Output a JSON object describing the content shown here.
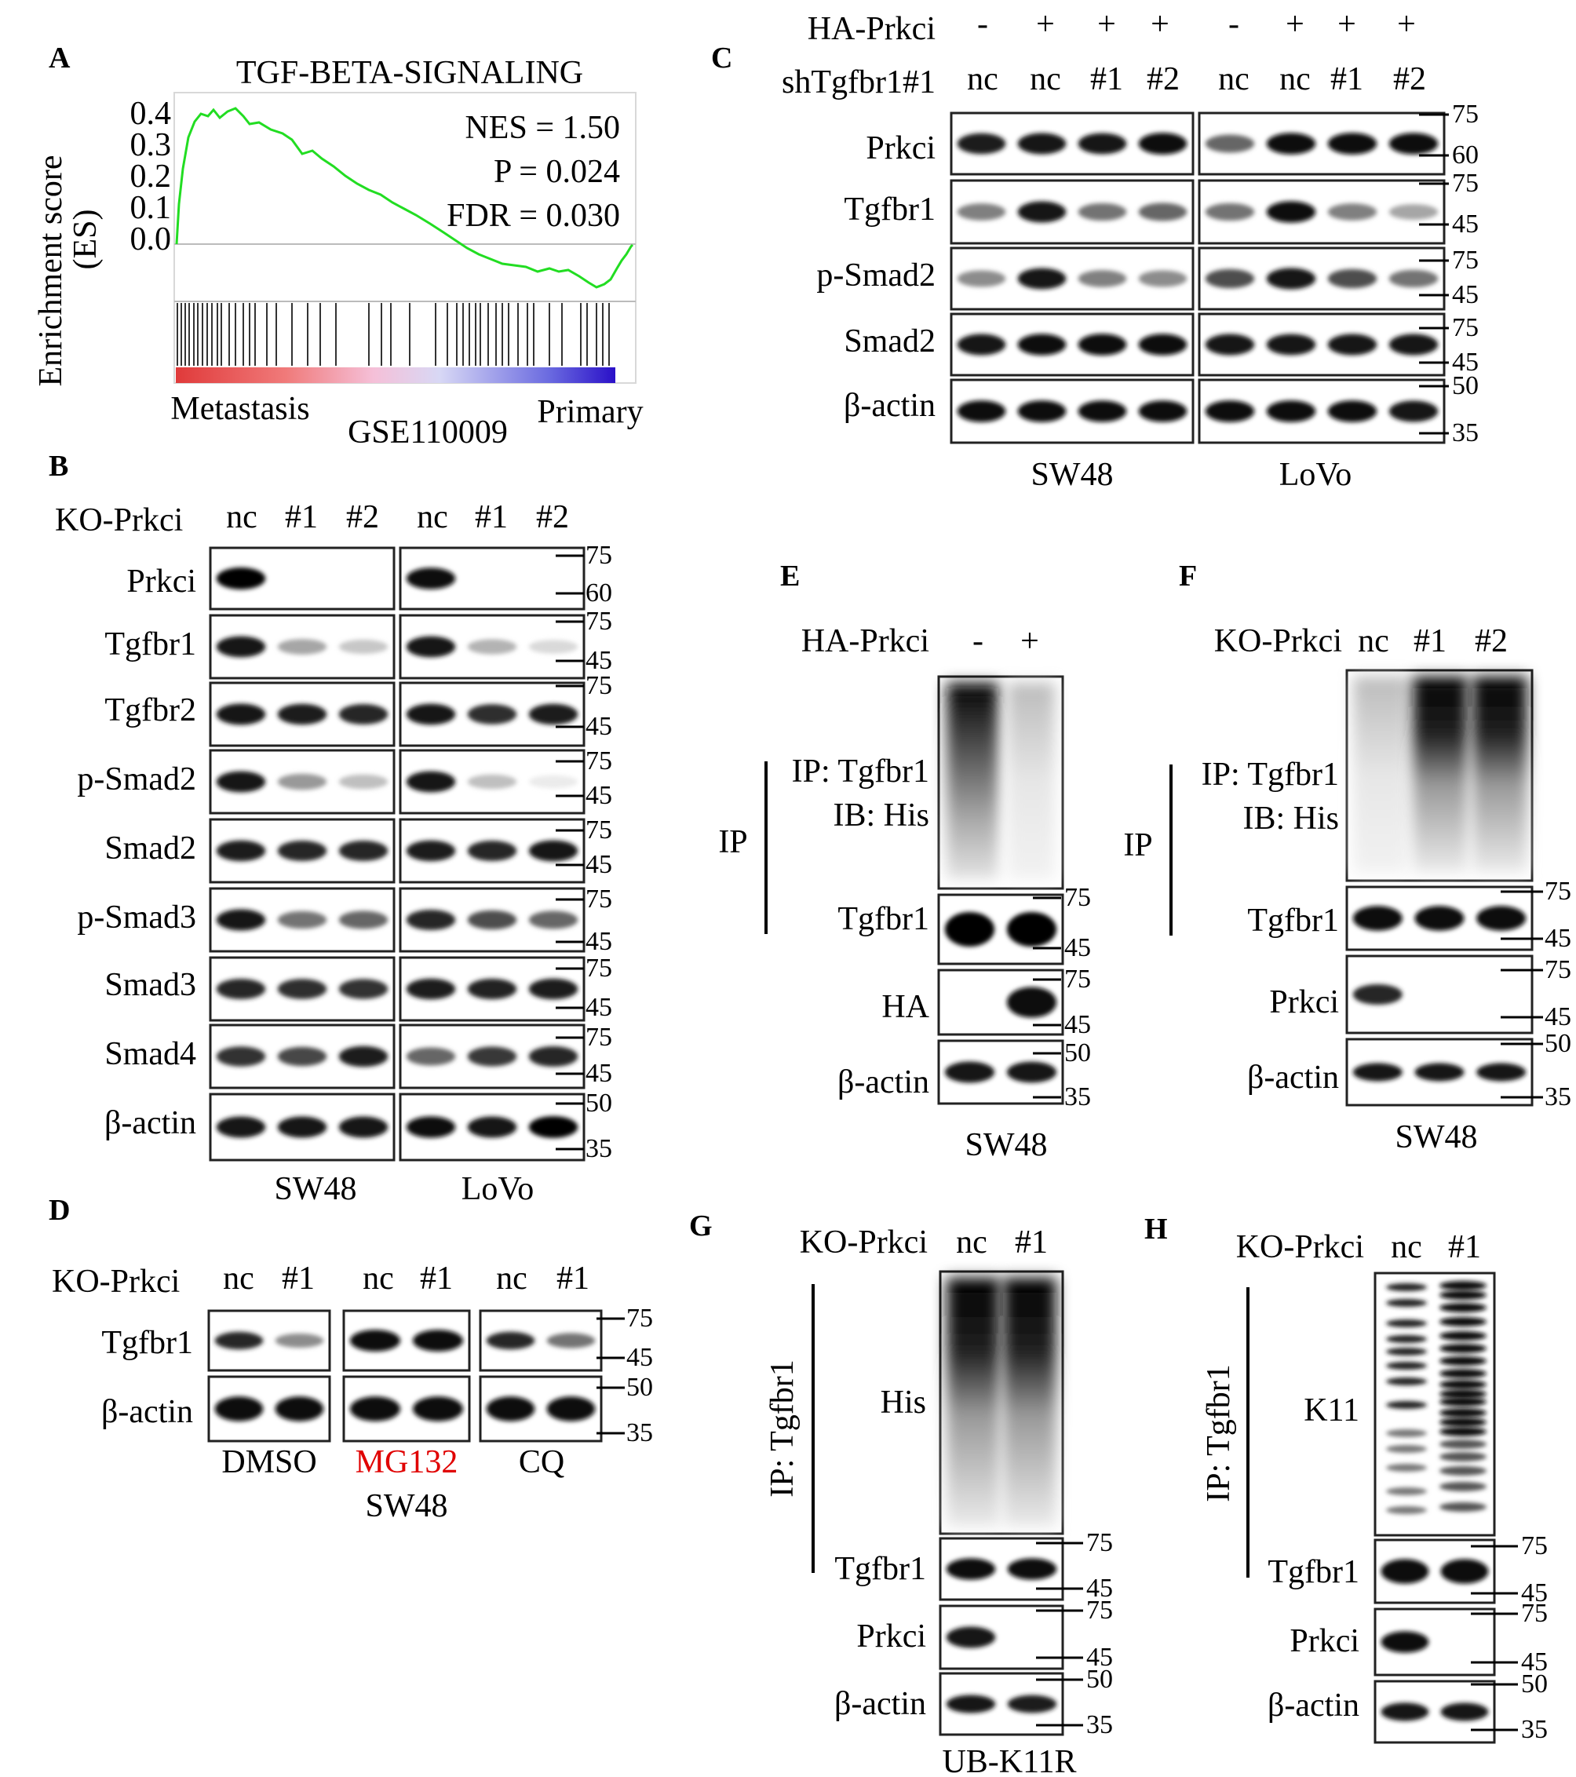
{
  "gsea": {
    "panel": "A",
    "title": "TGF-BETA-SIGNALING",
    "ylabel_line1": "Enrichment score",
    "ylabel_line2": "(ES)",
    "yticks": [
      "0.4",
      "0.3",
      "0.2",
      "0.1",
      "0.0"
    ],
    "stats": [
      "NES = 1.50",
      "P = 0.024",
      "FDR = 0.030"
    ],
    "left_label": "Metastasis",
    "right_label": "Primary",
    "dataset": "GSE110009",
    "line_color": "#22dd22"
  },
  "panel_b": {
    "panel": "B",
    "header": "KO-Prkci",
    "lanes": [
      "nc",
      "#1",
      "#2",
      "nc",
      "#1",
      "#2"
    ],
    "proteins": [
      "Prkci",
      "Tgfbr1",
      "Tgfbr2",
      "p-Smad2",
      "Smad2",
      "p-Smad3",
      "Smad3",
      "Smad4",
      "β-actin"
    ],
    "cells": [
      "SW48",
      "LoVo"
    ]
  },
  "panel_c": {
    "panel": "C",
    "row1_label": "HA-Prkci",
    "row1": [
      "-",
      "+",
      "+",
      "+",
      "-",
      "+",
      "+",
      "+"
    ],
    "row2_label": "shTgfbr1#1",
    "row2": [
      "nc",
      "nc",
      "#1",
      "#2",
      "nc",
      "nc",
      "#1",
      "#2"
    ],
    "proteins": [
      "Prkci",
      "Tgfbr1",
      "p-Smad2",
      "Smad2",
      "β-actin"
    ],
    "cells": [
      "SW48",
      "LoVo"
    ]
  },
  "panel_d": {
    "panel": "D",
    "header": "KO-Prkci",
    "lanes": [
      "nc",
      "#1",
      "nc",
      "#1",
      "nc",
      "#1"
    ],
    "proteins": [
      "Tgfbr1",
      "β-actin"
    ],
    "treatments": [
      "DMSO",
      "MG132",
      "CQ"
    ],
    "highlight_color": "#e00000",
    "cell": "SW48"
  },
  "panel_e": {
    "panel": "E",
    "header": "HA-Prkci",
    "lanes": [
      "-",
      "+"
    ],
    "ip_label1": "IP: Tgfbr1",
    "ip_label2": "IB: His",
    "ip_side": "IP",
    "proteins": [
      "Tgfbr1",
      "HA",
      "β-actin"
    ],
    "cell": "SW48"
  },
  "panel_f": {
    "panel": "F",
    "header": "KO-Prkci",
    "lanes": [
      "nc",
      "#1",
      "#2"
    ],
    "ip_label1": "IP: Tgfbr1",
    "ip_label2": "IB: His",
    "ip_side": "IP",
    "proteins": [
      "Tgfbr1",
      "Prkci",
      "β-actin"
    ],
    "cell": "SW48"
  },
  "panel_g": {
    "panel": "G",
    "header": "KO-Prkci",
    "lanes": [
      "nc",
      "#1"
    ],
    "ip_side": "IP: Tgfbr1",
    "ip_blot": "His",
    "proteins": [
      "Tgfbr1",
      "Prkci",
      "β-actin"
    ],
    "cell": "UB-K11R"
  },
  "panel_h": {
    "panel": "H",
    "header": "KO-Prkci",
    "lanes": [
      "nc",
      "#1"
    ],
    "ip_side": "IP: Tgfbr1",
    "ip_blot": "K11",
    "proteins": [
      "Tgfbr1",
      "Prkci",
      "β-actin"
    ]
  },
  "mw": {
    "m75": "75",
    "m60": "60",
    "m50": "50",
    "m45": "45",
    "m35": "35"
  }
}
